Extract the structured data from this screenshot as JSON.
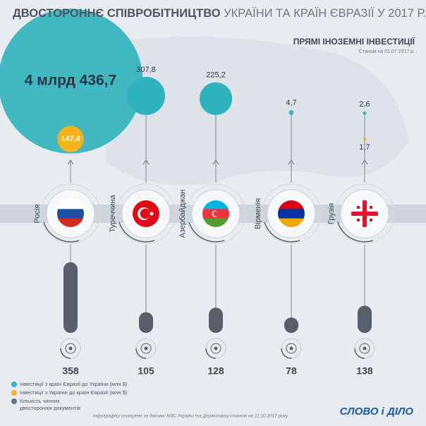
{
  "header": {
    "title_bold": "ДВОСТОРОННЄ СПІВРОБІТНИЦТВО",
    "title_rest": "УКРАЇНИ ТА КРАЇН ЄВРАЗІЇ У 2017 Р.",
    "section": "ПРЯМІ ІНОЗЕМНІ ІНВЕСТИЦІЇ",
    "date_note": "Станом на 01.07.2017 р."
  },
  "countries": [
    {
      "name": "Росія",
      "invest_to_ukraine": 4436.7,
      "invest_to_ukraine_label": "4 млрд 436,7",
      "invest_from_ukraine": 147.4,
      "invest_from_ukraine_label": "147,4",
      "documents": 358
    },
    {
      "name": "Туреччина",
      "invest_to_ukraine": 307.8,
      "invest_to_ukraine_label": "307,8",
      "documents": 105
    },
    {
      "name": "Азербайджан",
      "invest_to_ukraine": 225.2,
      "invest_to_ukraine_label": "225,2",
      "documents": 128
    },
    {
      "name": "Вірменія",
      "invest_to_ukraine": 4.7,
      "invest_to_ukraine_label": "4,7",
      "documents": 78
    },
    {
      "name": "Грузія",
      "invest_to_ukraine": 2.6,
      "invest_to_ukraine_label": "2,6",
      "invest_from_ukraine": 1.7,
      "invest_from_ukraine_label": "1,7",
      "documents": 138
    }
  ],
  "legend": {
    "to_ukraine": "Інвестиції з країн Євразії до України (млн $)",
    "from_ukraine": "Інвестиції з України до країн Євразії (млн $)",
    "documents_line1": "Кількість чинних",
    "documents_line2": "двосторонніх документів"
  },
  "footer": {
    "note": "Інфографіку створено за даними МЗС України та Держстату станом на 11.10.2017 року",
    "logo": "СЛОВО і ДІЛО"
  }
}
